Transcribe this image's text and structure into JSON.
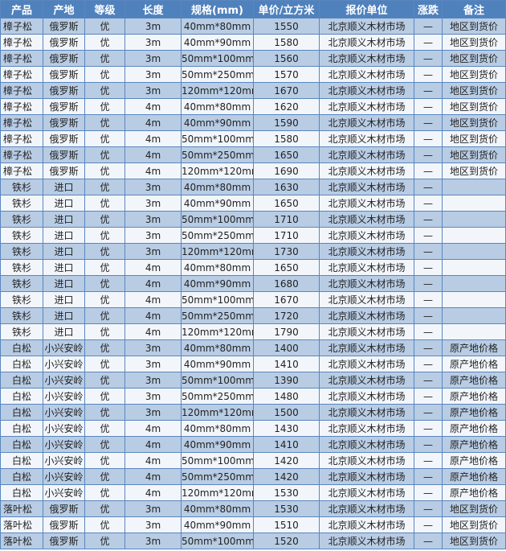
{
  "headers": [
    "产品",
    "产地",
    "等级",
    "长度",
    "规格(mm)",
    "单价/立方米",
    "报价单位",
    "涨跌",
    "备注"
  ],
  "colors": {
    "header": "#4f81bd",
    "row_odd": "#b8cce4",
    "row_even": "#f2f6fb"
  },
  "rows": [
    [
      "樟子松",
      "俄罗斯",
      "优",
      "3m",
      "40mm*80mm",
      "1550",
      "北京顺义木材市场",
      "—",
      "地区到货价"
    ],
    [
      "樟子松",
      "俄罗斯",
      "优",
      "3m",
      "40mm*90mm",
      "1580",
      "北京顺义木材市场",
      "—",
      "地区到货价"
    ],
    [
      "樟子松",
      "俄罗斯",
      "优",
      "3m",
      "50mm*100mm",
      "1560",
      "北京顺义木材市场",
      "—",
      "地区到货价"
    ],
    [
      "樟子松",
      "俄罗斯",
      "优",
      "3m",
      "50mm*250mm",
      "1570",
      "北京顺义木材市场",
      "—",
      "地区到货价"
    ],
    [
      "樟子松",
      "俄罗斯",
      "优",
      "3m",
      "120mm*120mm",
      "1670",
      "北京顺义木材市场",
      "—",
      "地区到货价"
    ],
    [
      "樟子松",
      "俄罗斯",
      "优",
      "4m",
      "40mm*80mm",
      "1620",
      "北京顺义木材市场",
      "—",
      "地区到货价"
    ],
    [
      "樟子松",
      "俄罗斯",
      "优",
      "4m",
      "40mm*90mm",
      "1590",
      "北京顺义木材市场",
      "—",
      "地区到货价"
    ],
    [
      "樟子松",
      "俄罗斯",
      "优",
      "4m",
      "50mm*100mm",
      "1580",
      "北京顺义木材市场",
      "—",
      "地区到货价"
    ],
    [
      "樟子松",
      "俄罗斯",
      "优",
      "4m",
      "50mm*250mm",
      "1650",
      "北京顺义木材市场",
      "—",
      "地区到货价"
    ],
    [
      "樟子松",
      "俄罗斯",
      "优",
      "4m",
      "120mm*120mm",
      "1690",
      "北京顺义木材市场",
      "—",
      "地区到货价"
    ],
    [
      "铁杉",
      "进口",
      "优",
      "3m",
      "40mm*80mm",
      "1630",
      "北京顺义木材市场",
      "—",
      ""
    ],
    [
      "铁杉",
      "进口",
      "优",
      "3m",
      "40mm*90mm",
      "1650",
      "北京顺义木材市场",
      "—",
      ""
    ],
    [
      "铁杉",
      "进口",
      "优",
      "3m",
      "50mm*100mm",
      "1710",
      "北京顺义木材市场",
      "—",
      ""
    ],
    [
      "铁杉",
      "进口",
      "优",
      "3m",
      "50mm*250mm",
      "1710",
      "北京顺义木材市场",
      "—",
      ""
    ],
    [
      "铁杉",
      "进口",
      "优",
      "3m",
      "120mm*120mm",
      "1730",
      "北京顺义木材市场",
      "—",
      ""
    ],
    [
      "铁杉",
      "进口",
      "优",
      "4m",
      "40mm*80mm",
      "1650",
      "北京顺义木材市场",
      "—",
      ""
    ],
    [
      "铁杉",
      "进口",
      "优",
      "4m",
      "40mm*90mm",
      "1680",
      "北京顺义木材市场",
      "—",
      ""
    ],
    [
      "铁杉",
      "进口",
      "优",
      "4m",
      "50mm*100mm",
      "1670",
      "北京顺义木材市场",
      "—",
      ""
    ],
    [
      "铁杉",
      "进口",
      "优",
      "4m",
      "50mm*250mm",
      "1720",
      "北京顺义木材市场",
      "—",
      ""
    ],
    [
      "铁杉",
      "进口",
      "优",
      "4m",
      "120mm*120mm",
      "1790",
      "北京顺义木材市场",
      "—",
      ""
    ],
    [
      "白松",
      "小兴安岭",
      "优",
      "3m",
      "40mm*80mm",
      "1400",
      "北京顺义木材市场",
      "—",
      "原产地价格"
    ],
    [
      "白松",
      "小兴安岭",
      "优",
      "3m",
      "40mm*90mm",
      "1410",
      "北京顺义木材市场",
      "—",
      "原产地价格"
    ],
    [
      "白松",
      "小兴安岭",
      "优",
      "3m",
      "50mm*100mm",
      "1390",
      "北京顺义木材市场",
      "—",
      "原产地价格"
    ],
    [
      "白松",
      "小兴安岭",
      "优",
      "3m",
      "50mm*250mm",
      "1480",
      "北京顺义木材市场",
      "—",
      "原产地价格"
    ],
    [
      "白松",
      "小兴安岭",
      "优",
      "3m",
      "120mm*120mm",
      "1500",
      "北京顺义木材市场",
      "—",
      "原产地价格"
    ],
    [
      "白松",
      "小兴安岭",
      "优",
      "4m",
      "40mm*80mm",
      "1430",
      "北京顺义木材市场",
      "—",
      "原产地价格"
    ],
    [
      "白松",
      "小兴安岭",
      "优",
      "4m",
      "40mm*90mm",
      "1410",
      "北京顺义木材市场",
      "—",
      "原产地价格"
    ],
    [
      "白松",
      "小兴安岭",
      "优",
      "4m",
      "50mm*100mm",
      "1420",
      "北京顺义木材市场",
      "—",
      "原产地价格"
    ],
    [
      "白松",
      "小兴安岭",
      "优",
      "4m",
      "50mm*250mm",
      "1420",
      "北京顺义木材市场",
      "—",
      "原产地价格"
    ],
    [
      "白松",
      "小兴安岭",
      "优",
      "4m",
      "120mm*120mm",
      "1530",
      "北京顺义木材市场",
      "—",
      "原产地价格"
    ],
    [
      "落叶松",
      "俄罗斯",
      "优",
      "3m",
      "40mm*80mm",
      "1530",
      "北京顺义木材市场",
      "—",
      "地区到货价"
    ],
    [
      "落叶松",
      "俄罗斯",
      "优",
      "3m",
      "40mm*90mm",
      "1510",
      "北京顺义木材市场",
      "—",
      "地区到货价"
    ],
    [
      "落叶松",
      "俄罗斯",
      "优",
      "3m",
      "50mm*100mm",
      "1520",
      "北京顺义木材市场",
      "—",
      "地区到货价"
    ]
  ]
}
